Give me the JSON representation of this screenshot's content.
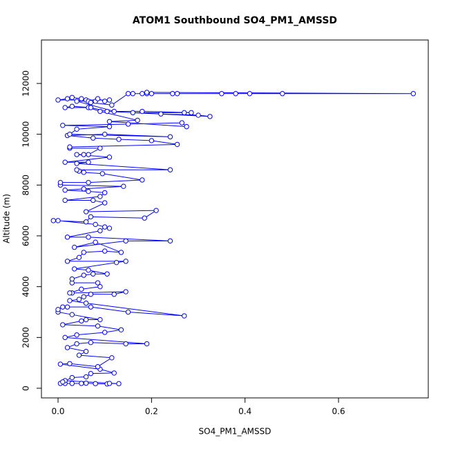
{
  "chart_data": {
    "type": "line",
    "title": "ATOM1 Southbound SO4_PM1_AMSSD",
    "x_label": "SO4_PM1_AMSSD",
    "y_label": "Altitude (m)",
    "color": "#0000ff",
    "markers": true,
    "xlim": [
      -0.0355,
      0.792
    ],
    "ylim": [
      -380,
      13711
    ],
    "xticks": [
      {
        "value": 0,
        "label": "0.0"
      },
      0.2,
      0.4,
      0.6
    ],
    "yticks": [
      0,
      2000,
      4000,
      6000,
      8000,
      10000,
      12000
    ],
    "x": [
      0.005,
      0.015,
      0.03,
      0.05,
      0.06,
      0.08,
      0.105,
      0.11,
      0.13,
      0.015,
      0.01,
      0.03,
      0.06,
      0.07,
      0.12,
      0.09,
      0.005,
      0.025,
      0.085,
      0.115,
      0.045,
      0.06,
      0.02,
      0.04,
      0.07,
      0.145,
      0.19,
      0.015,
      0.04,
      0.1,
      0.135,
      0.085,
      0.01,
      0.05,
      0.06,
      0.09,
      0.03,
      0.0,
      0.0,
      0.01,
      0.02,
      0.07,
      0.15,
      0.27,
      0.06,
      0.025,
      0.045,
      0.055,
      0.07,
      0.12,
      0.145,
      0.03,
      0.025,
      0.05,
      0.09,
      0.085,
      0.03,
      0.03,
      0.055,
      0.075,
      0.105,
      0.065,
      0.035,
      0.125,
      0.145,
      0.02,
      0.045,
      0.055,
      0.1,
      0.135,
      0.08,
      0.035,
      0.145,
      0.24,
      0.065,
      0.02,
      0.09,
      0.1,
      0.11,
      0.08,
      0.0,
      -0.01,
      0.06,
      0.07,
      0.185,
      0.21,
      0.06,
      0.1,
      0.075,
      0.015,
      0.09,
      0.1,
      0.065,
      0.015,
      0.055,
      0.14,
      0.005,
      0.005,
      0.065,
      0.18,
      0.095,
      0.055,
      0.045,
      0.04,
      0.24,
      0.04,
      0.065,
      0.015,
      0.11,
      0.04,
      0.055,
      0.065,
      0.09,
      0.025,
      0.025,
      0.255,
      0.2,
      0.13,
      0.075,
      0.02,
      0.1,
      0.24,
      0.025,
      0.04,
      0.11,
      0.01,
      0.15,
      0.265,
      0.275,
      0.11,
      0.17,
      0.09,
      0.065,
      0.015,
      0.03,
      0.07,
      0.105,
      0.22,
      0.3,
      0.325,
      0.16,
      0.27,
      0.285,
      0.18,
      0.12,
      0.04,
      0.08,
      0.085,
      0.1,
      0.11,
      0.0,
      0.02,
      0.03,
      0.05,
      0.06,
      0.065,
      0.07,
      0.115,
      0.15,
      0.16,
      0.18,
      0.19,
      0.2,
      0.245,
      0.255,
      0.35,
      0.38,
      0.41,
      0.48,
      0.76,
      0.19
    ],
    "values": [
      190,
      190,
      190,
      190,
      200,
      180,
      170,
      190,
      180,
      300,
      250,
      420,
      450,
      580,
      600,
      750,
      950,
      970,
      850,
      1200,
      1300,
      1450,
      1600,
      1750,
      1800,
      1750,
      1750,
      2000,
      2100,
      2200,
      2300,
      2450,
      2500,
      2650,
      2700,
      2700,
      2900,
      3000,
      3100,
      3200,
      3200,
      3200,
      3000,
      2850,
      3350,
      3450,
      3500,
      3600,
      3700,
      3700,
      3800,
      3750,
      3750,
      3900,
      4000,
      4150,
      4150,
      4300,
      4450,
      4500,
      4500,
      4650,
      4700,
      4950,
      5000,
      5000,
      5150,
      5350,
      5400,
      5350,
      5750,
      5550,
      5800,
      5800,
      5950,
      5950,
      6200,
      6350,
      6300,
      6450,
      6600,
      6600,
      6550,
      6750,
      6700,
      7000,
      6950,
      7300,
      7400,
      7400,
      7550,
      7700,
      7750,
      7800,
      7850,
      7950,
      8000,
      8100,
      8100,
      8200,
      8450,
      8500,
      8550,
      8600,
      8600,
      8850,
      8900,
      8900,
      9100,
      9200,
      9200,
      9200,
      9450,
      9450,
      9500,
      9600,
      9750,
      9800,
      9850,
      9950,
      10000,
      9900,
      10000,
      10200,
      10300,
      10350,
      10400,
      10450,
      10300,
      10500,
      10550,
      10900,
      11050,
      11050,
      11100,
      11050,
      10900,
      10800,
      10750,
      10700,
      10850,
      10850,
      10850,
      10900,
      10900,
      11300,
      11300,
      11400,
      11300,
      11350,
      11350,
      11400,
      11450,
      11400,
      11350,
      11300,
      11250,
      11150,
      11600,
      11600,
      11600,
      11600,
      11600,
      11600,
      11600,
      11600,
      11600,
      11600,
      11600,
      11600,
      11650
    ]
  }
}
